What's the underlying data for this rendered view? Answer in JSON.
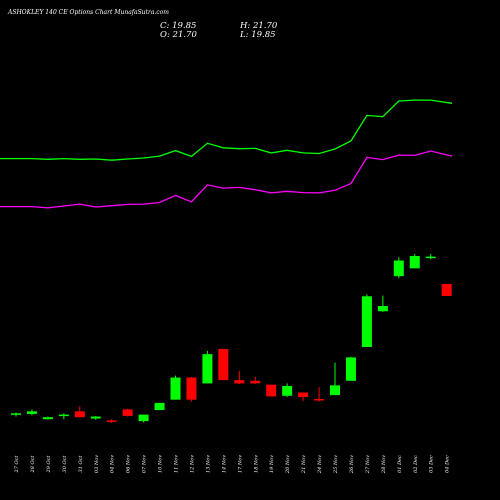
{
  "chart_data": {
    "type": "candlestick",
    "title": "ASHOKLEY 140  CE Options  Chart MunafaSutra.com",
    "ohlc_readout": {
      "close": "C: 19.85",
      "high": "H: 21.70",
      "open": "O: 21.70",
      "low": "L: 19.85"
    },
    "dates": [
      "27 Oct",
      "28 Oct",
      "29 Oct",
      "30 Oct",
      "31 Oct",
      "03 Nov",
      "04 Nov",
      "06 Nov",
      "07 Nov",
      "10 Nov",
      "11 Nov",
      "12 Nov",
      "13 Nov",
      "14 Nov",
      "17 Nov",
      "18 Nov",
      "19 Nov",
      "20 Nov",
      "21 Nov",
      "24 Nov",
      "25 Nov",
      "26 Nov",
      "27 Nov",
      "28 Nov",
      "01 Dec",
      "02 Dec",
      "03 Dec",
      "04 Dec"
    ],
    "candles": [
      {
        "o": 1.7,
        "h": 1.9,
        "l": 1.3,
        "c": 1.8
      },
      {
        "o": 1.7,
        "h": 2.4,
        "l": 1.5,
        "c": 2.1
      },
      {
        "o": 0.9,
        "h": 1.3,
        "l": 0.8,
        "c": 1.2
      },
      {
        "o": 1.4,
        "h": 1.8,
        "l": 0.9,
        "c": 1.6
      },
      {
        "o": 2.1,
        "h": 2.9,
        "l": 1.2,
        "c": 1.2
      },
      {
        "o": 1.0,
        "h": 1.4,
        "l": 0.8,
        "c": 1.3
      },
      {
        "o": 0.7,
        "h": 0.9,
        "l": 0.3,
        "c": 0.5
      },
      {
        "o": 2.4,
        "h": 2.5,
        "l": 1.3,
        "c": 1.4
      },
      {
        "o": 0.6,
        "h": 1.6,
        "l": 0.4,
        "c": 1.6
      },
      {
        "o": 2.3,
        "h": 3.4,
        "l": 2.3,
        "c": 3.4
      },
      {
        "o": 3.9,
        "h": 7.6,
        "l": 3.9,
        "c": 7.3
      },
      {
        "o": 7.3,
        "h": 7.4,
        "l": 3.6,
        "c": 3.9
      },
      {
        "o": 6.4,
        "h": 11.4,
        "l": 6.4,
        "c": 10.9
      },
      {
        "o": 11.7,
        "h": 11.7,
        "l": 6.9,
        "c": 6.9
      },
      {
        "o": 6.9,
        "h": 8.3,
        "l": 6.3,
        "c": 6.4
      },
      {
        "o": 6.8,
        "h": 7.4,
        "l": 6.3,
        "c": 6.4
      },
      {
        "o": 6.2,
        "h": 6.2,
        "l": 4.4,
        "c": 4.4
      },
      {
        "o": 4.5,
        "h": 6.4,
        "l": 4.3,
        "c": 6.0
      },
      {
        "o": 5.0,
        "h": 5.0,
        "l": 3.7,
        "c": 4.3
      },
      {
        "o": 4.0,
        "h": 5.8,
        "l": 3.6,
        "c": 3.9
      },
      {
        "o": 4.6,
        "h": 9.6,
        "l": 4.6,
        "c": 6.1
      },
      {
        "o": 6.8,
        "h": 10.5,
        "l": 6.8,
        "c": 10.4
      },
      {
        "o": 12.0,
        "h": 20.1,
        "l": 12.0,
        "c": 19.8
      },
      {
        "o": 17.5,
        "h": 19.9,
        "l": 17.4,
        "c": 18.3
      },
      {
        "o": 22.9,
        "h": 25.8,
        "l": 22.6,
        "c": 25.3
      },
      {
        "o": 24.1,
        "h": 26.3,
        "l": 24.1,
        "c": 26.0
      },
      {
        "o": 25.7,
        "h": 26.3,
        "l": 25.5,
        "c": 25.9
      },
      {
        "o": 21.7,
        "h": 21.7,
        "l": 19.85,
        "c": 19.85
      }
    ],
    "moving_averages": [
      {
        "color": "#00ff00",
        "values": [
          32.8,
          32.8,
          32.6,
          32.8,
          32.6,
          32.7,
          32.3,
          32.7,
          33.0,
          33.6,
          35.3,
          33.5,
          37.6,
          36.2,
          35.9,
          36.0,
          34.6,
          35.4,
          34.6,
          34.4,
          35.8,
          38.3,
          46.3,
          45.9,
          50.8,
          51.1,
          51.1,
          50.1
        ]
      },
      {
        "color": "#ff00ff",
        "values": [
          17.8,
          17.8,
          17.4,
          18.0,
          18.6,
          17.7,
          18.1,
          18.5,
          18.6,
          19.1,
          21.3,
          19.3,
          24.6,
          23.6,
          23.8,
          23.1,
          22.1,
          22.6,
          22.2,
          22.1,
          22.9,
          25.0,
          33.2,
          32.5,
          33.9,
          33.8,
          35.2,
          33.6
        ]
      }
    ],
    "colors": {
      "up": "#00ff00",
      "down": "#ff0000",
      "background": "#000000",
      "text": "#ffffff"
    }
  }
}
